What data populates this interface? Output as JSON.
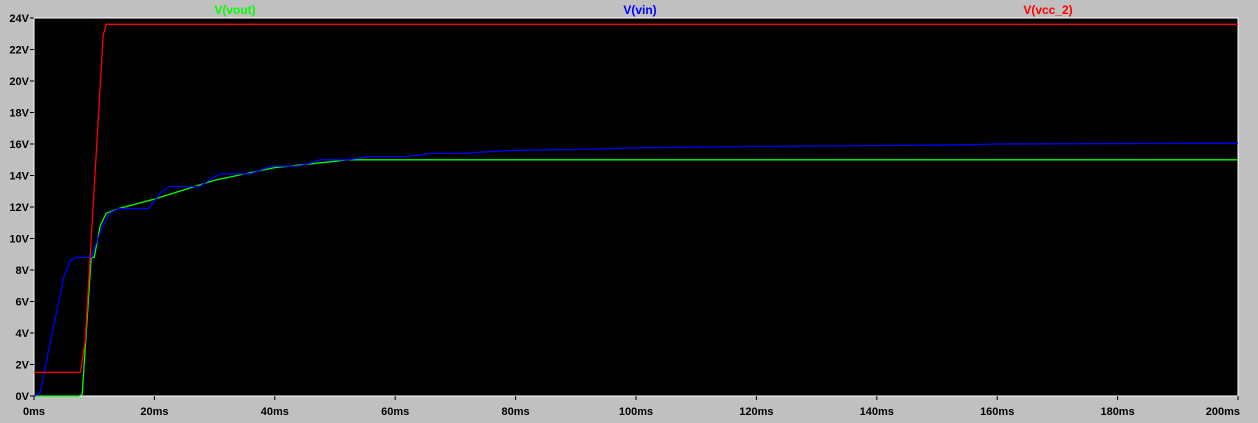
{
  "chart_data": {
    "type": "line",
    "background": "#000000",
    "frame_background": "#c0c0c0",
    "xlabel": "",
    "ylabel": "",
    "xlim": [
      0,
      200
    ],
    "ylim": [
      0,
      24
    ],
    "grid": false,
    "legend_placement": "top",
    "x_ticks": [
      {
        "value": 0,
        "label": "0ms"
      },
      {
        "value": 20,
        "label": "20ms"
      },
      {
        "value": 40,
        "label": "40ms"
      },
      {
        "value": 60,
        "label": "60ms"
      },
      {
        "value": 80,
        "label": "80ms"
      },
      {
        "value": 100,
        "label": "100ms"
      },
      {
        "value": 120,
        "label": "120ms"
      },
      {
        "value": 140,
        "label": "140ms"
      },
      {
        "value": 160,
        "label": "160ms"
      },
      {
        "value": 180,
        "label": "180ms"
      },
      {
        "value": 200,
        "label": "200ms"
      }
    ],
    "y_ticks": [
      {
        "value": 0,
        "label": "0V"
      },
      {
        "value": 2,
        "label": "2V"
      },
      {
        "value": 4,
        "label": "4V"
      },
      {
        "value": 6,
        "label": "6V"
      },
      {
        "value": 8,
        "label": "8V"
      },
      {
        "value": 10,
        "label": "10V"
      },
      {
        "value": 12,
        "label": "12V"
      },
      {
        "value": 14,
        "label": "14V"
      },
      {
        "value": 16,
        "label": "16V"
      },
      {
        "value": 18,
        "label": "18V"
      },
      {
        "value": 20,
        "label": "20V"
      },
      {
        "value": 22,
        "label": "22V"
      },
      {
        "value": 24,
        "label": "24V"
      }
    ],
    "series": [
      {
        "name": "V(vout)",
        "color": "#00ff00",
        "x": [
          0,
          7.5,
          8.0,
          9.5,
          10.0,
          11.0,
          12.0,
          14.0,
          20.0,
          30.0,
          40.0,
          50.0,
          52.0,
          53.5,
          100.0,
          200.0
        ],
        "y": [
          0,
          0,
          0.1,
          8.8,
          8.8,
          10.8,
          11.6,
          11.9,
          12.5,
          13.7,
          14.5,
          14.9,
          15.0,
          15.0,
          15.0,
          15.0
        ]
      },
      {
        "name": "V(vin)",
        "color": "#0000ff",
        "x": [
          0,
          1.0,
          3.0,
          5.0,
          6.0,
          7.0,
          9.5,
          11.0,
          12.5,
          14.0,
          19.0,
          21.0,
          22.5,
          27.5,
          29.5,
          31.0,
          36.0,
          38.0,
          39.5,
          44.0,
          46.0,
          47.5,
          52.0,
          54.0,
          55.5,
          62.0,
          64.0,
          66.0,
          71.0,
          75.0,
          80.0,
          90.0,
          100.0,
          120.0,
          140.0,
          155.0,
          160.0,
          200.0
        ],
        "y": [
          0,
          0.2,
          4.0,
          7.6,
          8.6,
          8.8,
          8.8,
          10.4,
          11.6,
          11.9,
          11.9,
          12.9,
          13.3,
          13.3,
          13.8,
          14.1,
          14.1,
          14.4,
          14.6,
          14.6,
          14.8,
          15.0,
          15.0,
          15.1,
          15.2,
          15.2,
          15.3,
          15.4,
          15.4,
          15.5,
          15.6,
          15.65,
          15.75,
          15.85,
          15.9,
          15.95,
          16.0,
          16.05
        ]
      },
      {
        "name": "V(vcc_2)",
        "color": "#ff0000",
        "x": [
          0,
          7.0,
          7.7,
          8.5,
          11.5,
          12.0,
          100.0,
          200.0
        ],
        "y": [
          1.5,
          1.5,
          1.5,
          3.5,
          22.9,
          23.6,
          23.6,
          23.6
        ]
      }
    ]
  }
}
